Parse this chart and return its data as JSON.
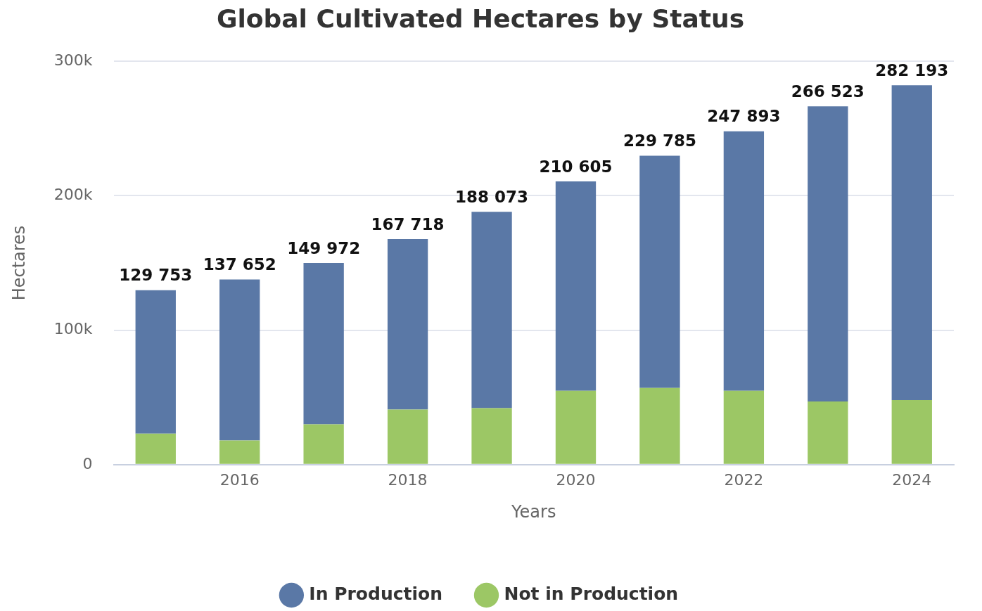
{
  "chart_data": {
    "type": "bar",
    "title": "Global Cultivated Hectares by Status",
    "xlabel": "Years",
    "ylabel": "Hectares",
    "categories": [
      null,
      "2016",
      null,
      "2018",
      null,
      "2020",
      null,
      "2022",
      null,
      "2024"
    ],
    "stacked": true,
    "series": [
      {
        "name": "Not in Production",
        "color": "#9cc765",
        "values": [
          23000,
          18000,
          30000,
          41000,
          42000,
          55000,
          57000,
          55000,
          47000,
          48000
        ]
      },
      {
        "name": "In Production",
        "color": "#5a78a6",
        "values": [
          106753,
          119652,
          119972,
          126718,
          146073,
          155605,
          172785,
          192893,
          219523,
          234193
        ]
      }
    ],
    "totals": [
      "129 753",
      "137 652",
      "149 972",
      "167 718",
      "188 073",
      "210 605",
      "229 785",
      "247 893",
      "266 523",
      "282 193"
    ],
    "ylim": [
      0,
      300000
    ],
    "yticks": [
      {
        "value": 0,
        "label": "0"
      },
      {
        "value": 100000,
        "label": "100k"
      },
      {
        "value": 200000,
        "label": "200k"
      },
      {
        "value": 300000,
        "label": "300k"
      }
    ],
    "grid": "y",
    "legend": "bottom"
  }
}
